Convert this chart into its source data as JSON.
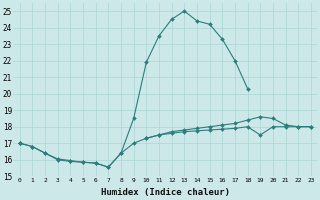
{
  "xlabel": "Humidex (Indice chaleur)",
  "ylabel": "",
  "xlim": [
    -0.5,
    23.5
  ],
  "ylim": [
    15,
    25.5
  ],
  "xticks": [
    0,
    1,
    2,
    3,
    4,
    5,
    6,
    7,
    8,
    9,
    10,
    11,
    12,
    13,
    14,
    15,
    16,
    17,
    18,
    19,
    20,
    21,
    22,
    23
  ],
  "yticks": [
    15,
    16,
    17,
    18,
    19,
    20,
    21,
    22,
    23,
    24,
    25
  ],
  "bg_color": "#cce8e8",
  "line_color": "#2d7d7d",
  "lines": [
    {
      "x": [
        0,
        1,
        2,
        3,
        4,
        5,
        6,
        7,
        8,
        9,
        10,
        11,
        12,
        13,
        14,
        15,
        16,
        17,
        18,
        19,
        20,
        21,
        22,
        23
      ],
      "y": [
        17.0,
        16.8,
        16.4,
        16.0,
        15.9,
        15.85,
        15.8,
        15.55,
        16.4,
        18.5,
        21.9,
        23.5,
        24.5,
        25.0,
        24.4,
        24.2,
        23.3,
        22.0,
        20.3,
        null,
        null,
        null,
        null,
        null
      ]
    },
    {
      "x": [
        0,
        1,
        2,
        3,
        4,
        5,
        6,
        7,
        8,
        9,
        10,
        11,
        12,
        13,
        14,
        15,
        16,
        17,
        18,
        19,
        20,
        21,
        22,
        23
      ],
      "y": [
        17.0,
        null,
        null,
        null,
        null,
        null,
        null,
        null,
        null,
        null,
        17.3,
        17.5,
        17.7,
        17.8,
        17.9,
        18.0,
        18.1,
        18.2,
        18.4,
        18.6,
        18.5,
        18.1,
        18.0,
        18.0
      ]
    },
    {
      "x": [
        0,
        1,
        2,
        3,
        4,
        5,
        6,
        7,
        8,
        9,
        10,
        11,
        12,
        13,
        14,
        15,
        16,
        17,
        18,
        19,
        20,
        21,
        22,
        23
      ],
      "y": [
        17.0,
        16.8,
        16.4,
        16.05,
        15.95,
        15.85,
        15.8,
        15.55,
        16.4,
        17.0,
        17.3,
        17.5,
        17.6,
        17.7,
        17.75,
        17.8,
        17.85,
        17.9,
        18.0,
        17.5,
        18.0,
        18.0,
        18.0,
        18.0
      ]
    }
  ]
}
